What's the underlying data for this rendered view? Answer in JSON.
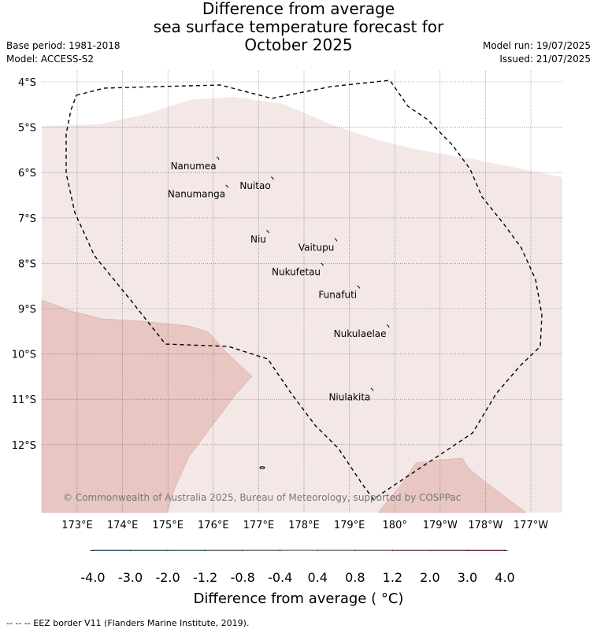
{
  "title": {
    "line1": "Difference from average",
    "line2": "sea surface temperature forecast for",
    "line3": "October 2025"
  },
  "meta": {
    "base_period": "Base period: 1981-2018",
    "model": "Model: ACCESS-S2",
    "model_run": "Model run: 19/07/2025",
    "issued": "Issued: 21/07/2025"
  },
  "map": {
    "lat_ticks": [
      {
        "value": -4,
        "label": "4°S"
      },
      {
        "value": -5,
        "label": "5°S"
      },
      {
        "value": -6,
        "label": "6°S"
      },
      {
        "value": -7,
        "label": "7°S"
      },
      {
        "value": -8,
        "label": "8°S"
      },
      {
        "value": -9,
        "label": "9°S"
      },
      {
        "value": -10,
        "label": "10°S"
      },
      {
        "value": -11,
        "label": "11°S"
      },
      {
        "value": -12,
        "label": "12°S"
      }
    ],
    "lon_ticks": [
      {
        "value": 173,
        "label": "173°E"
      },
      {
        "value": 174,
        "label": "174°E"
      },
      {
        "value": 175,
        "label": "175°E"
      },
      {
        "value": 176,
        "label": "176°E"
      },
      {
        "value": 177,
        "label": "177°E"
      },
      {
        "value": 178,
        "label": "178°E"
      },
      {
        "value": 179,
        "label": "179°E"
      },
      {
        "value": 180,
        "label": "180°"
      },
      {
        "value": 181,
        "label": "179°W"
      },
      {
        "value": 182,
        "label": "178°W"
      },
      {
        "value": 183,
        "label": "177°W"
      }
    ],
    "islands": [
      {
        "name": "Nanumea",
        "lon": 176.1,
        "lat": -5.68
      },
      {
        "name": "Nuitao",
        "lon": 177.3,
        "lat": -6.12
      },
      {
        "name": "Nanumanga",
        "lon": 176.3,
        "lat": -6.3
      },
      {
        "name": "Niu",
        "lon": 177.2,
        "lat": -7.3
      },
      {
        "name": "Vaitupu",
        "lon": 178.7,
        "lat": -7.48
      },
      {
        "name": "Nukufetau",
        "lon": 178.4,
        "lat": -8.02
      },
      {
        "name": "Funafuti",
        "lon": 179.2,
        "lat": -8.52
      },
      {
        "name": "Nukulaelae",
        "lon": 179.85,
        "lat": -9.38
      },
      {
        "name": "Niulakita",
        "lon": 179.5,
        "lat": -10.78
      }
    ],
    "copyright": "© Commonwealth of Australia 2025, Bureau of Meteorology, supported by COSPPac",
    "colors": {
      "band_0p4_0p8": "#f4e8e7",
      "band_0p8_1p2": "#e8c6c2",
      "eez_border": "#000000"
    }
  },
  "colorbar": {
    "title": "Difference from average ( °C)",
    "tick_labels": [
      "-4.0",
      "-3.0",
      "-2.0",
      "-1.2",
      "-0.8",
      "-0.4",
      "0.4",
      "0.8",
      "1.2",
      "2.0",
      "3.0",
      "4.0"
    ],
    "colors": [
      "#3f8c96",
      "#4aa3b3",
      "#69acbb",
      "#8bbcc6",
      "#a8c9cd",
      "#d0d9db",
      "#ffffff",
      "#f4e8e7",
      "#e8c6c2",
      "#d9929a",
      "#cd6470",
      "#c1434f",
      "#a81c3a"
    ]
  },
  "footer": "-- -- -- EEZ border V11 (Flanders Marine Institute, 2019)."
}
